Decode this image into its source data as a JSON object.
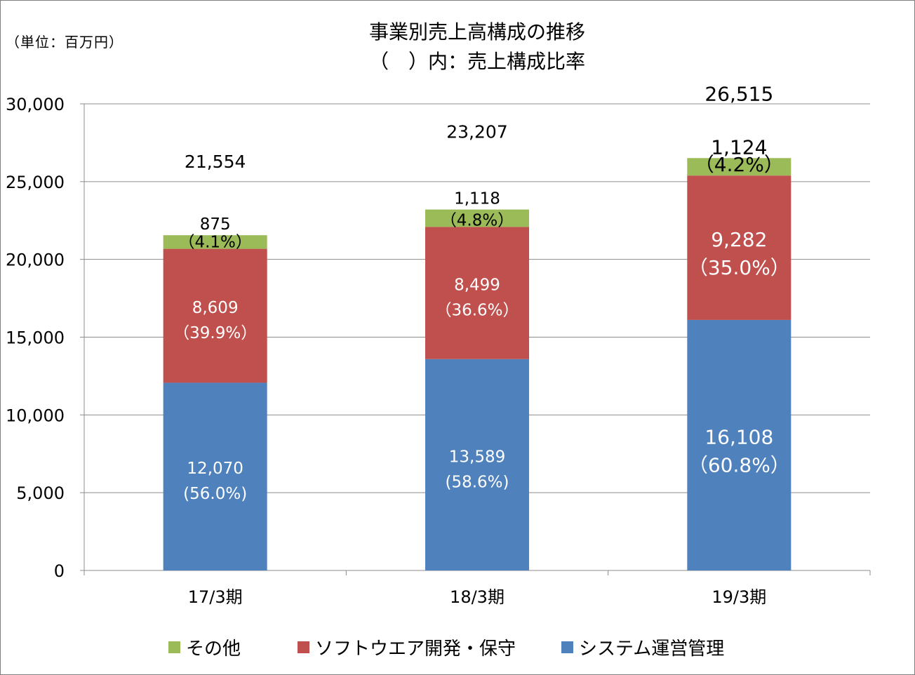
{
  "unit_label": "（単位：百万円）",
  "title_line1": "事業別売上高構成の推移",
  "title_line2": "（　）内：売上構成比率",
  "chart_data": {
    "type": "bar",
    "stacked": true,
    "categories": [
      "17/3期",
      "18/3期",
      "19/3期"
    ],
    "series": [
      {
        "name": "システム運営管理",
        "color": "#4f81bd",
        "values": [
          12070,
          13589,
          16108
        ],
        "value_labels": [
          "12,070",
          "13,589",
          "16,108"
        ],
        "pct_labels": [
          "(56.0%)",
          "(58.6%)",
          "（60.8%）"
        ]
      },
      {
        "name": "ソフトウエア開発・保守",
        "color": "#c0504d",
        "values": [
          8609,
          8499,
          9282
        ],
        "value_labels": [
          "8,609",
          "8,499",
          "9,282"
        ],
        "pct_labels": [
          "（39.9%）",
          "（36.6%）",
          "（35.0%）"
        ]
      },
      {
        "name": "その他",
        "color": "#9bbb59",
        "values": [
          875,
          1118,
          1124
        ],
        "value_labels": [
          "875",
          "1,118",
          "1,124"
        ],
        "pct_labels": [
          "（4.1%）",
          "（4.8%）",
          "（4.2%）"
        ]
      }
    ],
    "totals": [
      21554,
      23207,
      26515
    ],
    "total_labels": [
      "21,554",
      "23,207",
      "26,515"
    ],
    "ylim": [
      0,
      30000
    ],
    "yticks": [
      0,
      5000,
      10000,
      15000,
      20000,
      25000,
      30000
    ],
    "ytick_labels": [
      "0",
      "5,000",
      "10,000",
      "15,000",
      "20,000",
      "25,000",
      "30,000"
    ],
    "grid": true,
    "legend_position": "bottom",
    "legend_order": [
      "その他",
      "ソフトウエア開発・保守",
      "システム運営管理"
    ]
  }
}
